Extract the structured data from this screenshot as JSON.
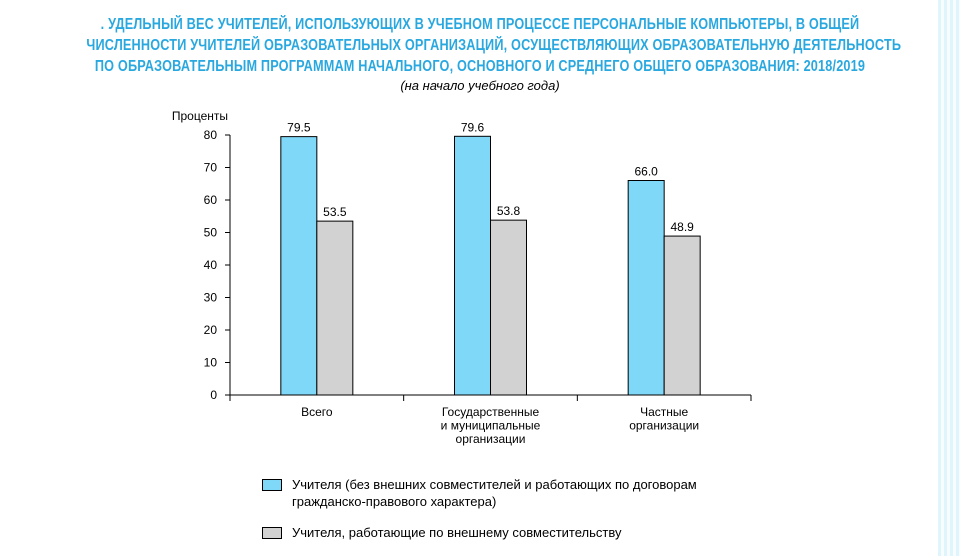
{
  "title_lines": [
    ". УДЕЛЬНЫЙ ВЕС УЧИТЕЛЕЙ, ИСПОЛЬЗУЮЩИХ В УЧЕБНОМ ПРОЦЕССЕ ПЕРСОНАЛЬНЫЕ КОМПЬЮТЕРЫ, В ОБЩЕЙ",
    "ЧИСЛЕННОСТИ УЧИТЕЛЕЙ ОБРАЗОВАТЕЛЬНЫХ ОРГАНИЗАЦИЙ, ОСУЩЕСТВЛЯЮЩИХ ОБРАЗОВАТЕЛЬНУЮ ДЕЯТЕЛЬНОСТЬ",
    "ПО ОБРАЗОВАТЕЛЬНЫМ ПРОГРАММАМ НАЧАЛЬНОГО, ОСНОВНОГО И СРЕДНЕГО ОБЩЕГО ОБРАЗОВАНИЯ: 2018/2019"
  ],
  "subtitle": "(на начало учебного года)",
  "colors": {
    "title": "#29a8e0",
    "series_1": "#7fd8f8",
    "series_2": "#d2d2d2",
    "axis": "#000000"
  },
  "chart_data": {
    "type": "bar",
    "title": ". УДЕЛЬНЫЙ ВЕС УЧИТЕЛЕЙ, ИСПОЛЬЗУЮЩИХ В УЧЕБНОМ ПРОЦЕССЕ ПЕРСОНАЛЬНЫЕ КОМПЬЮТЕРЫ, В ОБЩЕЙ ЧИСЛЕННОСТИ УЧИТЕЛЕЙ ОБРАЗОВАТЕЛЬНЫХ ОРГАНИЗАЦИЙ, ОСУЩЕСТВЛЯЮЩИХ ОБРАЗОВАТЕЛЬНУЮ ДЕЯТЕЛЬНОСТЬ ПО ОБРАЗОВАТЕЛЬНЫМ ПРОГРАММАМ НАЧАЛЬНОГО, ОСНОВНОГО И СРЕДНЕГО ОБЩЕГО ОБРАЗОВАНИЯ: 2018/2019",
    "subtitle": "(на начало учебного года)",
    "ylabel": "Проценты",
    "xlabel": "",
    "ylim": [
      0,
      80
    ],
    "yticks": [
      "0",
      "10",
      "20",
      "30",
      "40",
      "50",
      "60",
      "70",
      "80"
    ],
    "categories": [
      [
        "Всего"
      ],
      [
        "Государственные",
        "и муниципальные",
        "организации"
      ],
      [
        "Частные",
        "организации"
      ]
    ],
    "series": [
      {
        "name": "Учителя (без внешних совместителей и работающих по договорам гражданско-правового характера)",
        "values": [
          79.5,
          79.6,
          66.0
        ],
        "labels": [
          "79.5",
          "79.6",
          "66.0"
        ],
        "color": "#7fd8f8"
      },
      {
        "name": "Учителя, работающие по внешнему совместительству",
        "values": [
          53.5,
          53.8,
          48.9
        ],
        "labels": [
          "53.5",
          "53.8",
          "48.9"
        ],
        "color": "#d2d2d2"
      }
    ],
    "grid": false,
    "legend_position": "bottom"
  },
  "legend": [
    {
      "lines": [
        "Учителя (без внешних совместителей и работающих по договорам",
        "гражданско-правового характера)"
      ]
    },
    {
      "lines": [
        "Учителя, работающие по внешнему совместительству"
      ]
    }
  ]
}
